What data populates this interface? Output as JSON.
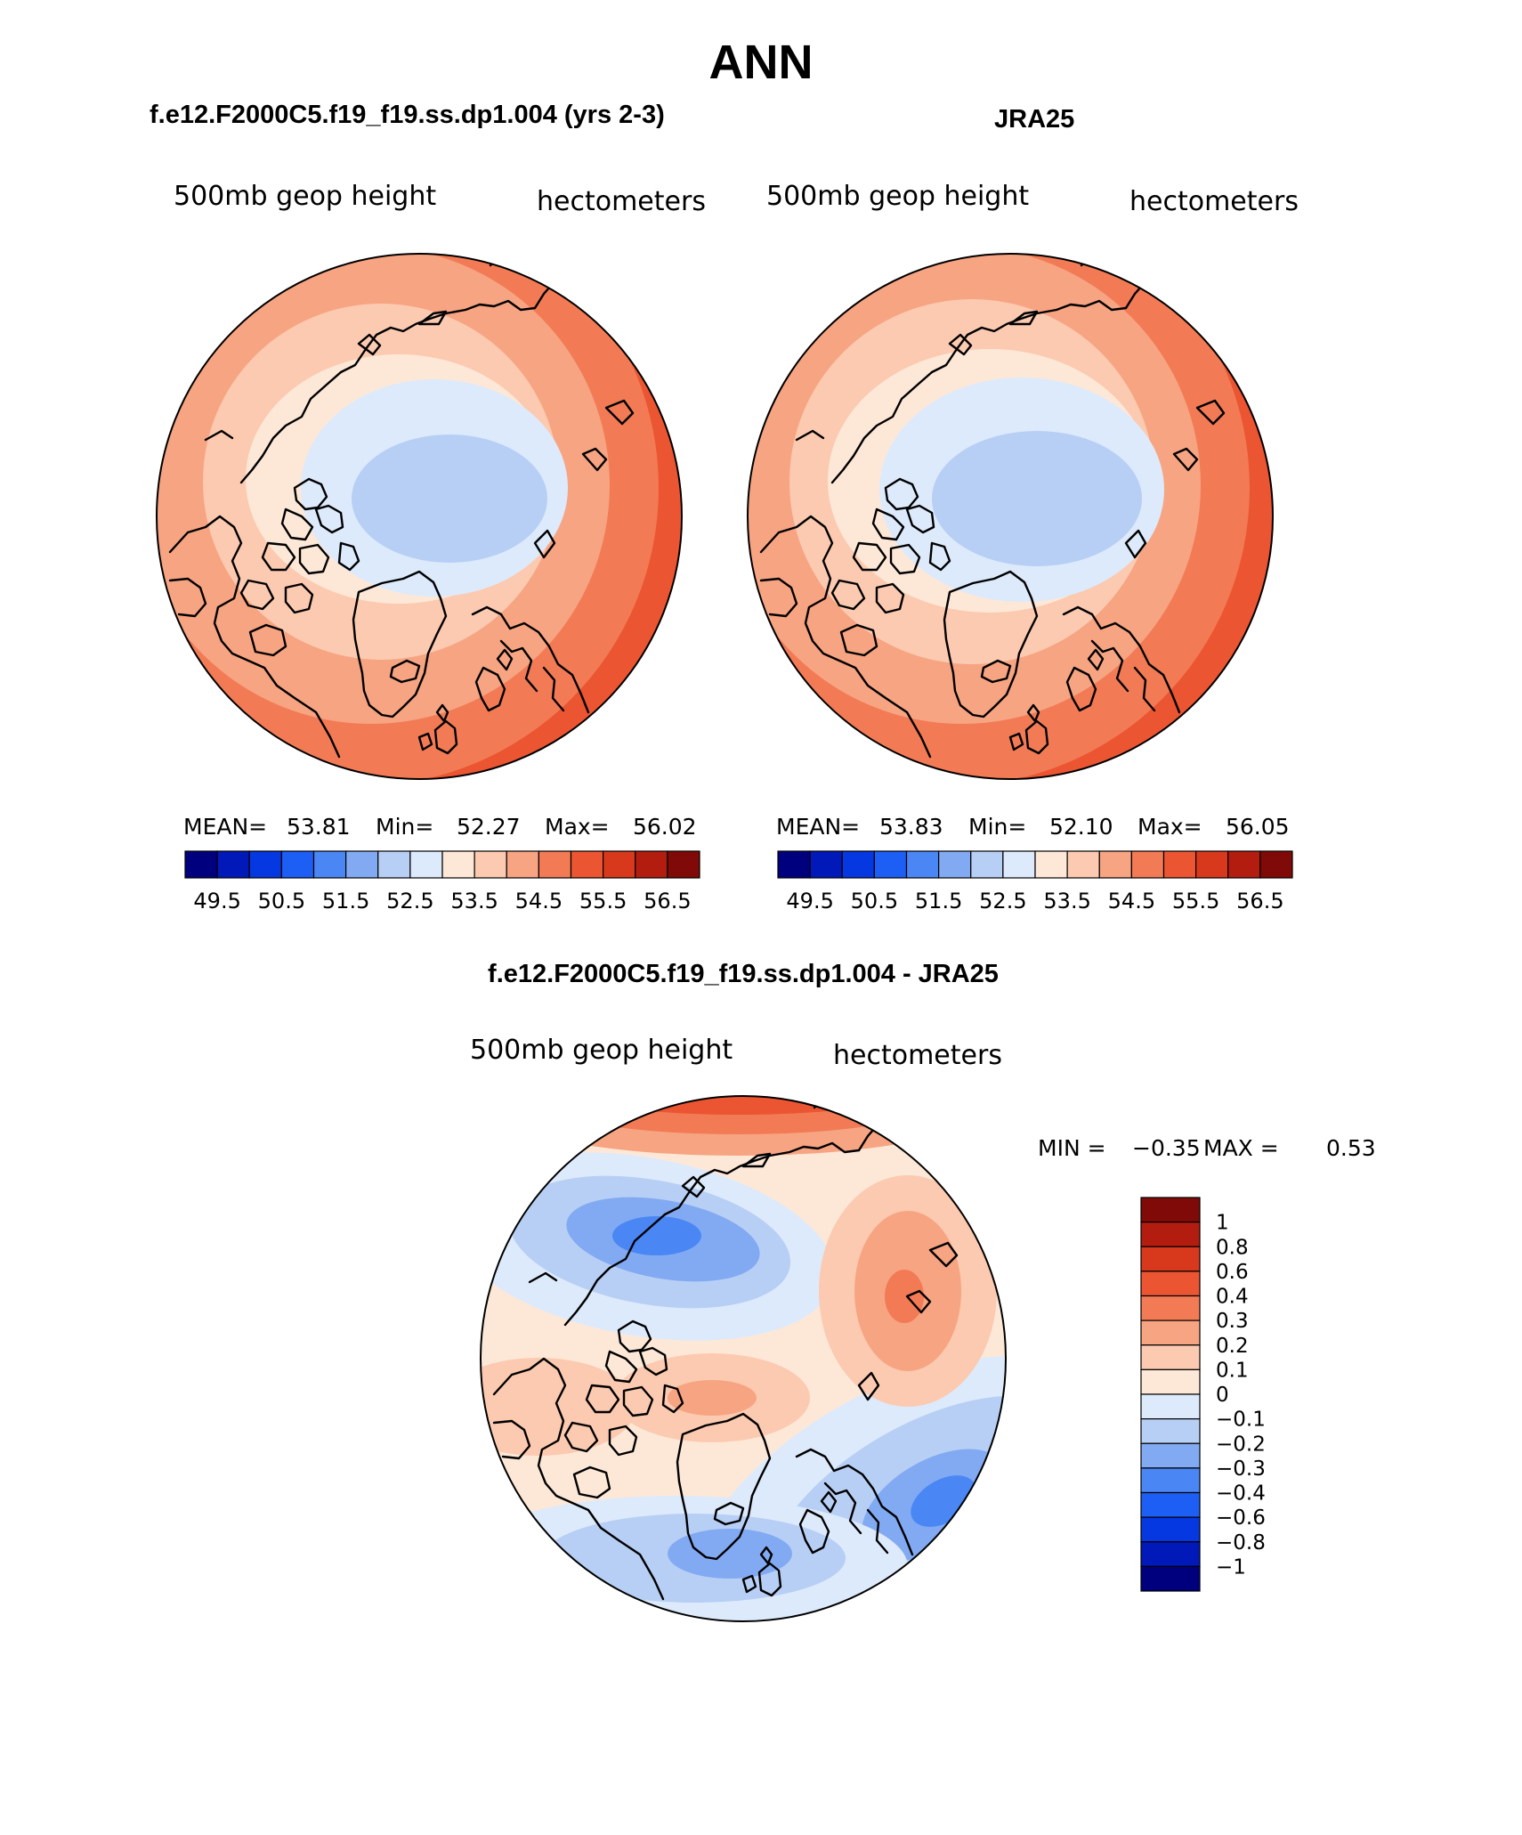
{
  "page": {
    "title": "ANN"
  },
  "panels": [
    {
      "id": "model",
      "case_title": "f.e12.F2000C5.f19_f19.ss.dp1.004 (yrs 2-3)",
      "left_label": "500mb geop height",
      "right_label": "hectometers",
      "stats": {
        "mean_label": "MEAN=",
        "mean": "53.81",
        "min_label": "Min=",
        "min": "52.27",
        "max_label": "Max=",
        "max": "56.02"
      },
      "colorbar_labels": [
        "49.5",
        "50.5",
        "51.5",
        "52.5",
        "53.5",
        "54.5",
        "55.5",
        "56.5"
      ]
    },
    {
      "id": "obs",
      "case_title": "JRA25",
      "left_label": "500mb geop height",
      "right_label": "hectometers",
      "stats": {
        "mean_label": "MEAN=",
        "mean": "53.83",
        "min_label": "Min=",
        "min": "52.10",
        "max_label": "Max=",
        "max": "56.05"
      },
      "colorbar_labels": [
        "49.5",
        "50.5",
        "51.5",
        "52.5",
        "53.5",
        "54.5",
        "55.5",
        "56.5"
      ]
    }
  ],
  "diff": {
    "title": "f.e12.F2000C5.f19_f19.ss.dp1.004 - JRA25",
    "left_label": "500mb geop height",
    "right_label": "hectometers",
    "min_label": "MIN =",
    "min": "−0.35",
    "max_label": "MAX =",
    "max": "0.53",
    "colorbar_labels": [
      "1",
      "0.8",
      "0.6",
      "0.4",
      "0.3",
      "0.2",
      "0.1",
      "0",
      "−0.1",
      "−0.2",
      "−0.3",
      "−0.4",
      "−0.6",
      "−0.8",
      "−1"
    ]
  },
  "colors": {
    "mean_scale": [
      "#00007e",
      "#0019b8",
      "#0538e0",
      "#1d5ff5",
      "#4a86f4",
      "#82aaf2",
      "#b8cff5",
      "#ddeafb",
      "#fde8d8",
      "#fccab0",
      "#f7a482",
      "#f27b55",
      "#eb5532",
      "#d8391c",
      "#b31d10",
      "#7f0a07"
    ],
    "diff_scale": [
      "#7f0a07",
      "#b31d10",
      "#d8391c",
      "#eb5532",
      "#f27b55",
      "#f7a482",
      "#fccab0",
      "#fde8d8",
      "#ddeafb",
      "#b8cff5",
      "#82aaf2",
      "#4a86f4",
      "#1d5ff5",
      "#0538e0",
      "#0019b8",
      "#00007e"
    ]
  }
}
